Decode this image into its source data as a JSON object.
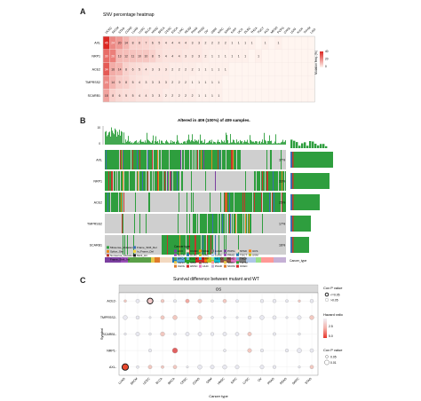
{
  "panels": {
    "a": {
      "letter": "A",
      "title": "SNV percentage heatmap"
    },
    "b": {
      "letter": "B",
      "title": "Altered in 409 (100%) of 409 samples."
    },
    "c": {
      "letter": "C",
      "title": "Survival difference between mutant and WT"
    }
  },
  "genes_a": [
    "AXL",
    "NRP1",
    "ACE2",
    "TMPRSS2",
    "SCARB1"
  ],
  "cancers_a": [
    "UCEC",
    "SKCM",
    "STAD",
    "COAD",
    "LUAD",
    "LUSC",
    "BLCA",
    "HNSC",
    "BRCA",
    "CESC",
    "ESCA",
    "LIHC",
    "READ",
    "PAAD",
    "PRAD",
    "OV",
    "GBM",
    "KIRC",
    "SARC",
    "KIRP",
    "UCS",
    "DLBC",
    "THCA",
    "TGCT",
    "ACC",
    "MESO",
    "PCPG",
    "CHOL",
    "UVM",
    "KICH",
    "THYM",
    "LGG"
  ],
  "heat_values": [
    [
      "45",
      "24",
      "20",
      "14",
      "8",
      "8",
      "7",
      "6",
      "5",
      "4",
      "4",
      "4",
      "4",
      "3",
      "3",
      "2",
      "2",
      "2",
      "2",
      "1",
      "1",
      "1",
      "1",
      "",
      "1",
      "",
      "1",
      "",
      "",
      "",
      "",
      ""
    ],
    [
      "30",
      "26",
      "13",
      "12",
      "11",
      "10",
      "10",
      "8",
      "5",
      "4",
      "4",
      "4",
      "3",
      "3",
      "3",
      "2",
      "1",
      "1",
      "1",
      "1",
      "1",
      "1",
      "",
      "1",
      "",
      "",
      "",
      "",
      "",
      "",
      "",
      ""
    ],
    [
      "34",
      "16",
      "14",
      "8",
      "6",
      "5",
      "4",
      "3",
      "3",
      "3",
      "2",
      "2",
      "2",
      "2",
      "1",
      "1",
      "1",
      "1",
      "1",
      "",
      "",
      "",
      "",
      "",
      "",
      "",
      "",
      "",
      "",
      "",
      "",
      ""
    ],
    [
      "24",
      "14",
      "9",
      "8",
      "5",
      "4",
      "3",
      "3",
      "3",
      "3",
      "2",
      "2",
      "2",
      "1",
      "1",
      "1",
      "1",
      "1",
      "",
      "",
      "",
      "",
      "",
      "",
      "",
      "",
      "",
      "",
      "",
      "",
      "",
      ""
    ],
    [
      "18",
      "8",
      "6",
      "5",
      "5",
      "4",
      "4",
      "3",
      "3",
      "2",
      "2",
      "2",
      "2",
      "2",
      "1",
      "1",
      "1",
      "1",
      "",
      "",
      "",
      "",
      "",
      "",
      "",
      "",
      "",
      "",
      "",
      "",
      "",
      ""
    ]
  ],
  "legend_a": {
    "title": "Mutation freq. (%)",
    "ticks": [
      "0",
      "20",
      "40"
    ]
  },
  "oncoprint": {
    "genes": [
      "AXL",
      "NRP1",
      "ACE2",
      "TMPRSS2",
      "SCARB1"
    ],
    "percents": [
      "37%",
      "33%",
      "25%",
      "17%",
      "16%"
    ],
    "tmb_ticks": [
      "0",
      "10"
    ],
    "cancer_type_label": "Cancer_type",
    "variant_legend": [
      "Missense_Mutation",
      "Splice_Site",
      "Nonsense_Mutation",
      "Frame_Shift_Ins",
      "Frame_Shift_Del",
      "In_Frame_Del",
      "Multi_Hit"
    ],
    "variant_colors": [
      "#2e9e3e",
      "#e88a1f",
      "#c0392b",
      "#7b3fa0",
      "#3a6fb0",
      "#f0d23a",
      "#222222"
    ],
    "cancer_legend_title": "Cancer type",
    "cancer_legend": [
      "ACC",
      "BLCA",
      "BRCA",
      "CESC",
      "CHOL",
      "COAD",
      "DLBC",
      "ESCA",
      "GBM",
      "HNSC",
      "KICH",
      "KIRC",
      "KIRP",
      "LGG",
      "LIHC",
      "LUAD",
      "LUSC",
      "MESO",
      "OV",
      "PAAD",
      "PCPG",
      "PRAD",
      "READ",
      "SARC",
      "SKCM",
      "STAD",
      "TGCT",
      "THCA",
      "THYM",
      "UCEC",
      "UCS",
      "UVM"
    ]
  },
  "survival": {
    "facet": "OS",
    "ylabel": "Symbol",
    "xlabel": "Cancer type",
    "genes": [
      "ACE2",
      "TMPRSS2",
      "SCARB1",
      "NRP1",
      "AXL"
    ],
    "cancers": [
      "LUAD",
      "SKCM",
      "UCEC",
      "BLCA",
      "BRCA",
      "CESC",
      "COAD",
      "GBM",
      "HNSC",
      "KIRC",
      "LUSC",
      "OV",
      "PRAD",
      "READ",
      "SARC",
      "STAD"
    ],
    "legend_p_title": "Cox P value",
    "legend_p": [
      "<=0.05",
      ">0.05"
    ],
    "legend_hr_title": "Hazard ratio",
    "legend_hr_ticks": [
      "2.5",
      "5.0"
    ],
    "legend_size_title": "Cox P value",
    "legend_size": [
      "0.05",
      "0.01"
    ]
  }
}
